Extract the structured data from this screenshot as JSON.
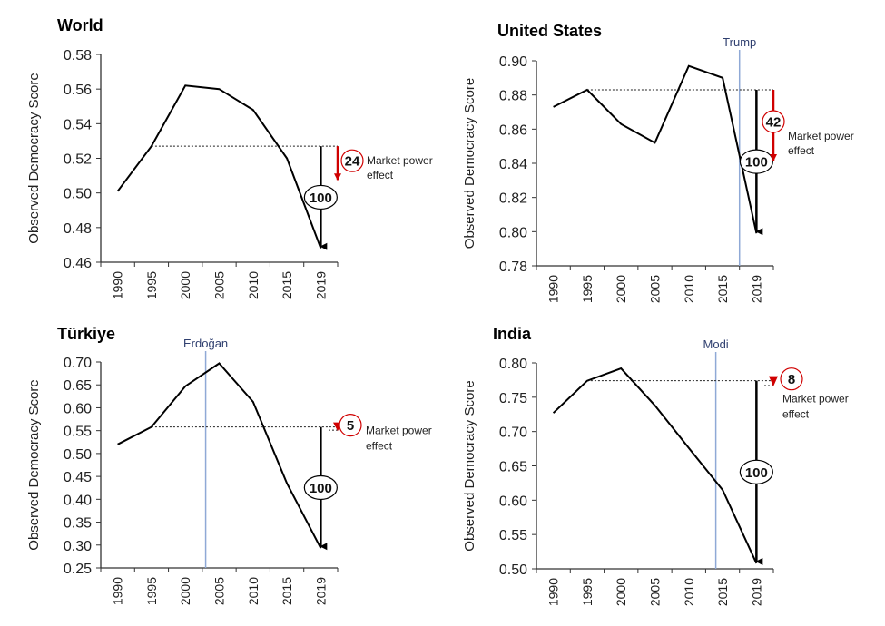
{
  "colors": {
    "line": "#000000",
    "marker_line": "#8fa9d6",
    "marker_text": "#2f3f6f",
    "effect": "#d00000"
  },
  "chart_data": [
    {
      "type": "line",
      "title": "World",
      "ylabel": "Observed Democracy Score",
      "categories": [
        "1990",
        "1995",
        "2000",
        "2005",
        "2010",
        "2015",
        "2019"
      ],
      "values": [
        0.501,
        0.527,
        0.562,
        0.56,
        0.548,
        0.52,
        0.468
      ],
      "ylim": [
        0.46,
        0.58
      ],
      "yticks": [
        "0.46",
        "0.48",
        "0.50",
        "0.52",
        "0.54",
        "0.56",
        "0.58"
      ],
      "reference_level": 0.527,
      "total_decline_label": "100",
      "effect_end": 0.506,
      "effect_label": "24",
      "effect_text": [
        "Market power",
        "effect"
      ],
      "marker": null
    },
    {
      "type": "line",
      "title": "United States",
      "ylabel": "Observed Democracy Score",
      "categories": [
        "1990",
        "1995",
        "2000",
        "2005",
        "2010",
        "2015",
        "2019"
      ],
      "values": [
        0.873,
        0.883,
        0.863,
        0.852,
        0.897,
        0.89,
        0.799
      ],
      "ylim": [
        0.78,
        0.9
      ],
      "yticks": [
        "0.78",
        "0.80",
        "0.82",
        "0.84",
        "0.86",
        "0.88",
        "0.90"
      ],
      "reference_level": 0.883,
      "total_decline_label": "100",
      "effect_end": 0.84,
      "effect_label": "42",
      "effect_text": [
        "Market power",
        "effect"
      ],
      "marker": {
        "label": "Trump",
        "year": 2017
      }
    },
    {
      "type": "line",
      "title": "Türkiye",
      "ylabel": "Observed Democracy Score",
      "categories": [
        "1990",
        "1995",
        "2000",
        "2005",
        "2010",
        "2015",
        "2019"
      ],
      "values": [
        0.52,
        0.558,
        0.647,
        0.697,
        0.613,
        0.435,
        0.293
      ],
      "ylim": [
        0.25,
        0.7
      ],
      "yticks": [
        "0.25",
        "0.30",
        "0.35",
        "0.40",
        "0.45",
        "0.50",
        "0.55",
        "0.60",
        "0.65",
        "0.70"
      ],
      "reference_level": 0.558,
      "total_decline_label": "100",
      "effect_end": 0.551,
      "effect_label": "5",
      "effect_text": [
        "Market power",
        "effect"
      ],
      "marker": {
        "label": "Erdoğan",
        "year": 2003
      }
    },
    {
      "type": "line",
      "title": "India",
      "ylabel": "Observed Democracy Score",
      "categories": [
        "1990",
        "1995",
        "2000",
        "2005",
        "2010",
        "2015",
        "2019"
      ],
      "values": [
        0.727,
        0.774,
        0.792,
        0.738,
        0.676,
        0.615,
        0.508
      ],
      "ylim": [
        0.5,
        0.8
      ],
      "yticks": [
        "0.50",
        "0.55",
        "0.60",
        "0.65",
        "0.70",
        "0.75",
        "0.80"
      ],
      "reference_level": 0.774,
      "total_decline_label": "100",
      "effect_end": 0.767,
      "effect_label": "8",
      "effect_text": [
        "Market power",
        "effect"
      ],
      "marker": {
        "label": "Modi",
        "year": 2014
      }
    }
  ]
}
